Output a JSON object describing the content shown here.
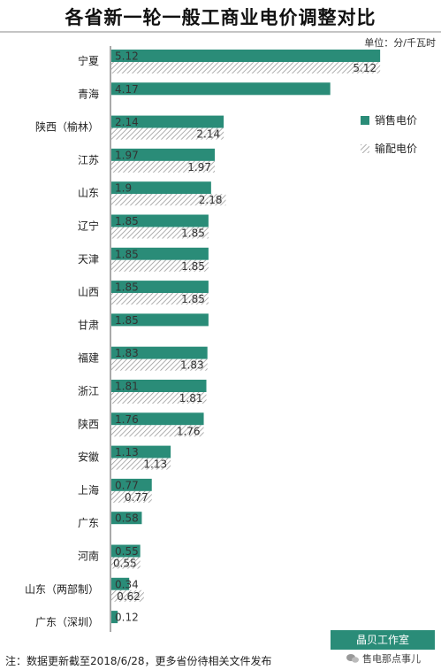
{
  "chart_data": {
    "type": "bar",
    "orientation": "horizontal",
    "title": "各省新一轮一般工商业电价调整对比",
    "unit_label": "单位：分/千瓦时",
    "categories": [
      "宁夏",
      "青海",
      "陕西（榆林）",
      "江苏",
      "山东",
      "辽宁",
      "天津",
      "山西",
      "甘肃",
      "福建",
      "浙江",
      "陕西",
      "安徽",
      "上海",
      "广东",
      "河南",
      "山东（两部制）",
      "广东（深圳）"
    ],
    "series": [
      {
        "name": "销售电价",
        "color": "#2a8c78",
        "values": [
          5.12,
          4.17,
          2.14,
          1.97,
          1.9,
          1.85,
          1.85,
          1.85,
          1.85,
          1.83,
          1.81,
          1.76,
          1.13,
          0.77,
          0.58,
          0.55,
          0.34,
          0.12
        ]
      },
      {
        "name": "输配电价",
        "color": "#bbbbbb",
        "pattern": "hatched",
        "values": [
          5.12,
          null,
          2.14,
          1.97,
          2.18,
          1.85,
          1.85,
          1.85,
          null,
          1.83,
          1.81,
          1.76,
          1.13,
          0.77,
          null,
          0.55,
          0.62,
          null
        ]
      }
    ],
    "value_labels_sales": [
      "5.12",
      "4.17",
      "2.14",
      "1.97",
      "1.9",
      "1.85",
      "1.85",
      "1.85",
      "1.85",
      "1.83",
      "1.81",
      "1.76",
      "1.13",
      "0.77",
      "0.58",
      "0.55",
      "0.34",
      "0.12"
    ],
    "value_labels_trans": [
      "5.12",
      "",
      "2.14",
      "1.97",
      "2.18",
      "1.85",
      "1.85",
      "1.85",
      "",
      "1.83",
      "1.81",
      "1.76",
      "1.13",
      "0.77",
      "",
      "0.55",
      "0.62",
      ""
    ],
    "legend_position": "right",
    "grid": false
  },
  "footnote": "注：数据更新截至2018/6/28，更多省份待相关文件发布",
  "studio_label": "晶贝工作室",
  "watermark": "售电那点事儿"
}
